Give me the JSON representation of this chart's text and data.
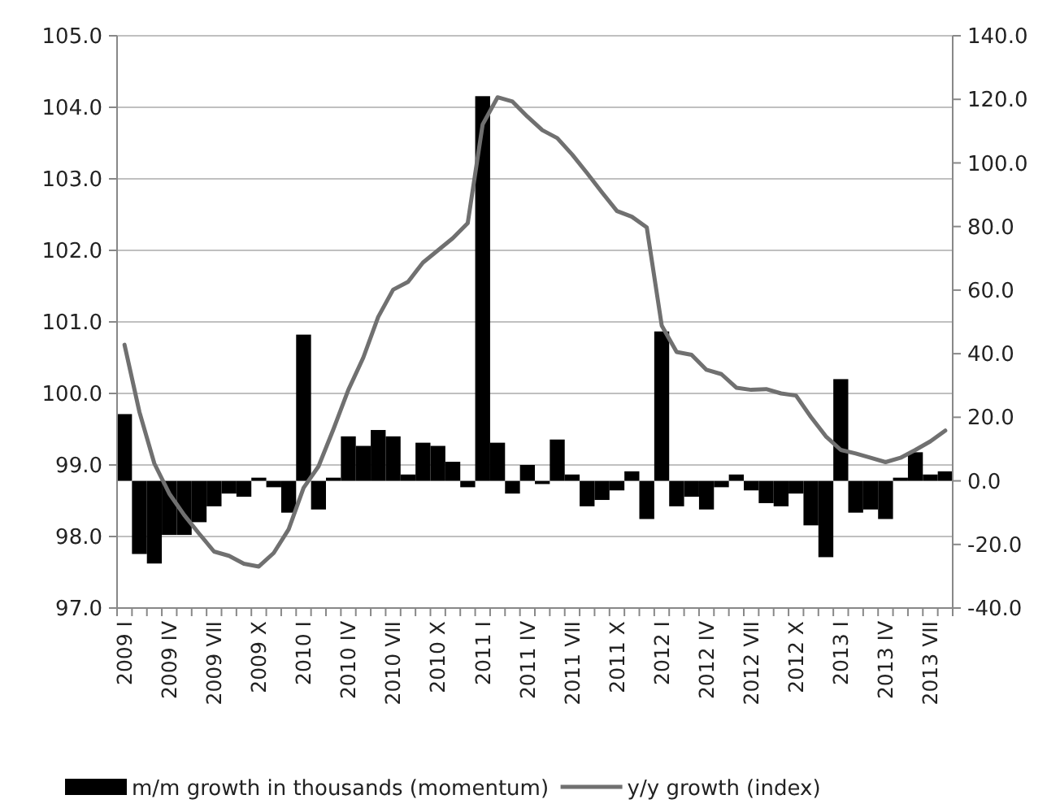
{
  "chart_data": {
    "type": "bar",
    "categories": [
      "2009 I",
      null,
      null,
      "2009 IV",
      null,
      null,
      "2009 VII",
      null,
      null,
      "2009 X",
      null,
      null,
      "2010 I",
      null,
      null,
      "2010 IV",
      null,
      null,
      "2010 VII",
      null,
      null,
      "2010 X",
      null,
      null,
      "2011 I",
      null,
      null,
      "2011 IV",
      null,
      null,
      "2011 VII",
      null,
      null,
      "2011 X",
      null,
      null,
      "2012 I",
      null,
      null,
      "2012 IV",
      null,
      null,
      "2012 VII",
      null,
      null,
      "2012 X",
      null,
      null,
      "2013 I",
      null,
      null,
      "2013 IV",
      null,
      null,
      "2013 VII",
      null
    ],
    "series": [
      {
        "name": "m/m growth in thousands (momentum)",
        "axis": "y2",
        "color": "#000000",
        "values": [
          21,
          -23,
          -26,
          -17,
          -17,
          -13,
          -8,
          -4,
          -5,
          1,
          -2,
          -10,
          46,
          -9,
          1,
          14,
          11,
          16,
          14,
          2,
          12,
          11,
          6,
          -2,
          121,
          12,
          -4,
          5,
          -1,
          13,
          2,
          -8,
          -6,
          -3,
          3,
          -12,
          47,
          -8,
          -5,
          -9,
          -2,
          2,
          -3,
          -7,
          -8,
          -4,
          -14,
          -24,
          32,
          -10,
          -9,
          -12,
          1,
          9,
          2,
          3
        ]
      },
      {
        "name": "y/y growth (index)",
        "type": "line",
        "axis": "y",
        "color": "#707070",
        "values": [
          100.68,
          99.74,
          99.02,
          98.6,
          98.3,
          98.04,
          97.79,
          97.73,
          97.62,
          97.58,
          97.77,
          98.1,
          98.68,
          98.98,
          99.5,
          100.05,
          100.5,
          101.07,
          101.45,
          101.56,
          101.83,
          102.0,
          102.17,
          102.38,
          103.76,
          104.14,
          104.08,
          103.87,
          103.68,
          103.57,
          103.34,
          103.08,
          102.81,
          102.55,
          102.47,
          102.32,
          100.95,
          100.58,
          100.54,
          100.33,
          100.27,
          100.08,
          100.05,
          100.06,
          100.0,
          99.97,
          99.67,
          99.4,
          99.21,
          99.16,
          99.1,
          99.04,
          99.1,
          99.21,
          99.33,
          99.48
        ]
      }
    ],
    "ylim": [
      97,
      105
    ],
    "yticks": [
      {
        "value": 97,
        "label": "97.0"
      },
      {
        "value": 98,
        "label": "98.0"
      },
      {
        "value": 99,
        "label": "99.0"
      },
      {
        "value": 100,
        "label": "100.0"
      },
      {
        "value": 101,
        "label": "101.0"
      },
      {
        "value": 102,
        "label": "102.0"
      },
      {
        "value": 103,
        "label": "103.0"
      },
      {
        "value": 104,
        "label": "104.0"
      },
      {
        "value": 105,
        "label": "105.0"
      }
    ],
    "y2lim": [
      -40,
      140
    ],
    "y2ticks": [
      {
        "value": -40,
        "label": "-40.0"
      },
      {
        "value": -20,
        "label": "-20.0"
      },
      {
        "value": 0,
        "label": "0.0"
      },
      {
        "value": 20,
        "label": "20.0"
      },
      {
        "value": 40,
        "label": "40.0"
      },
      {
        "value": 60,
        "label": "60.0"
      },
      {
        "value": 80,
        "label": "80.0"
      },
      {
        "value": 100,
        "label": "100.0"
      },
      {
        "value": 120,
        "label": "120.0"
      },
      {
        "value": 140,
        "label": "140.0"
      }
    ],
    "grid": "y",
    "legend": "bottom"
  }
}
